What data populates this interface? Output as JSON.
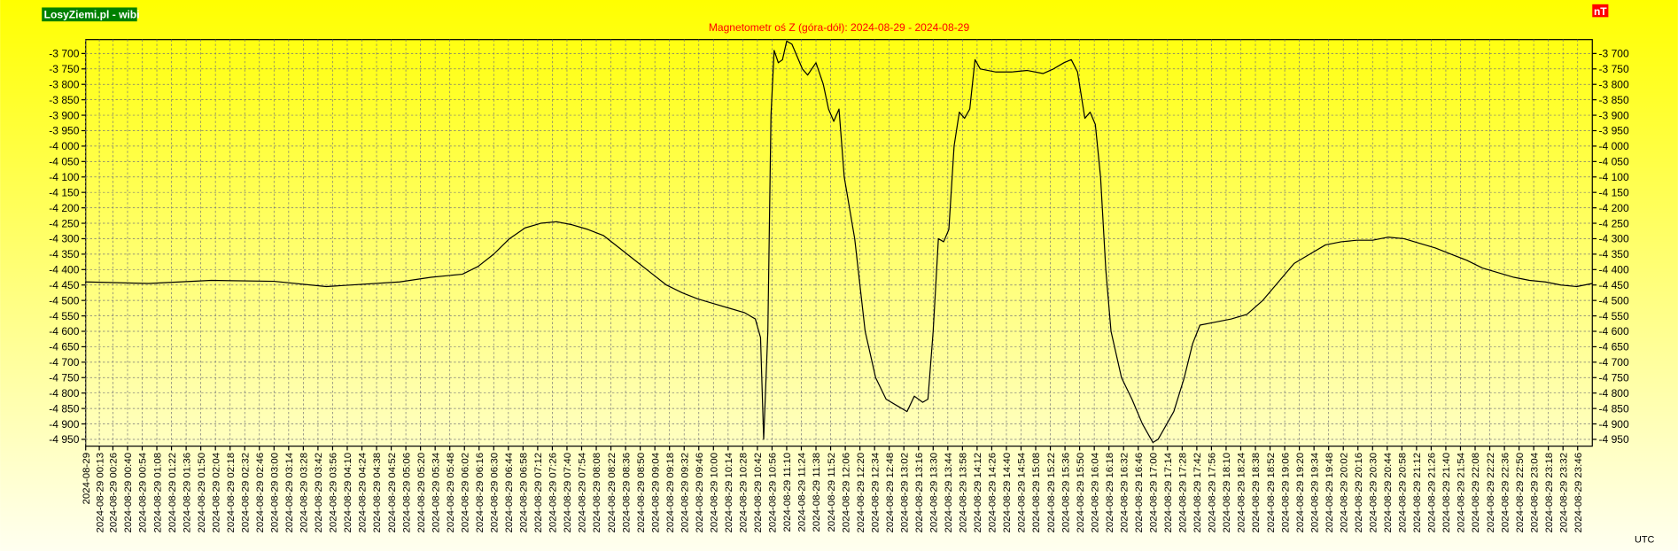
{
  "chart_data": {
    "type": "line",
    "title": "Magnetometr oś Z (góra-dół): 2024-08-29 - 2024-08-29",
    "site_label": "LosyZiemi.pl - wibi",
    "unit_label": "nT",
    "x_axis_label": "UTC",
    "grid": true,
    "xlim": [
      0,
      1440
    ],
    "ylim": [
      -4972,
      -3655
    ],
    "yticks": [
      {
        "value": -3700,
        "label": "-3 700"
      },
      {
        "value": -3750,
        "label": "-3 750"
      },
      {
        "value": -3800,
        "label": "-3 800"
      },
      {
        "value": -3850,
        "label": "-3 850"
      },
      {
        "value": -3900,
        "label": "-3 900"
      },
      {
        "value": -3950,
        "label": "-3 950"
      },
      {
        "value": -4000,
        "label": "-4 000"
      },
      {
        "value": -4050,
        "label": "-4 050"
      },
      {
        "value": -4100,
        "label": "-4 100"
      },
      {
        "value": -4150,
        "label": "-4 150"
      },
      {
        "value": -4200,
        "label": "-4 200"
      },
      {
        "value": -4250,
        "label": "-4 250"
      },
      {
        "value": -4300,
        "label": "-4 300"
      },
      {
        "value": -4350,
        "label": "-4 350"
      },
      {
        "value": -4400,
        "label": "-4 400"
      },
      {
        "value": -4450,
        "label": "-4 450"
      },
      {
        "value": -4500,
        "label": "-4 500"
      },
      {
        "value": -4550,
        "label": "-4 550"
      },
      {
        "value": -4600,
        "label": "-4 600"
      },
      {
        "value": -4650,
        "label": "-4 650"
      },
      {
        "value": -4700,
        "label": "-4 700"
      },
      {
        "value": -4750,
        "label": "-4 750"
      },
      {
        "value": -4800,
        "label": "-4 800"
      },
      {
        "value": -4850,
        "label": "-4 850"
      },
      {
        "value": -4900,
        "label": "-4 900"
      },
      {
        "value": -4950,
        "label": "-4 950"
      }
    ],
    "xticks": [
      {
        "value": 0,
        "label": "2024-08-29"
      },
      {
        "value": 13,
        "label": "2024-08-29 00:13"
      },
      {
        "value": 26,
        "label": "2024-08-29 00:26"
      },
      {
        "value": 40,
        "label": "2024-08-29 00:40"
      },
      {
        "value": 54,
        "label": "2024-08-29 00:54"
      },
      {
        "value": 68,
        "label": "2024-08-29 01:08"
      },
      {
        "value": 82,
        "label": "2024-08-29 01:22"
      },
      {
        "value": 96,
        "label": "2024-08-29 01:36"
      },
      {
        "value": 110,
        "label": "2024-08-29 01:50"
      },
      {
        "value": 124,
        "label": "2024-08-29 02:04"
      },
      {
        "value": 138,
        "label": "2024-08-29 02:18"
      },
      {
        "value": 152,
        "label": "2024-08-29 02:32"
      },
      {
        "value": 166,
        "label": "2024-08-29 02:46"
      },
      {
        "value": 180,
        "label": "2024-08-29 03:00"
      },
      {
        "value": 194,
        "label": "2024-08-29 03:14"
      },
      {
        "value": 208,
        "label": "2024-08-29 03:28"
      },
      {
        "value": 222,
        "label": "2024-08-29 03:42"
      },
      {
        "value": 236,
        "label": "2024-08-29 03:56"
      },
      {
        "value": 250,
        "label": "2024-08-29 04:10"
      },
      {
        "value": 264,
        "label": "2024-08-29 04:24"
      },
      {
        "value": 278,
        "label": "2024-08-29 04:38"
      },
      {
        "value": 292,
        "label": "2024-08-29 04:52"
      },
      {
        "value": 306,
        "label": "2024-08-29 05:06"
      },
      {
        "value": 320,
        "label": "2024-08-29 05:20"
      },
      {
        "value": 334,
        "label": "2024-08-29 05:34"
      },
      {
        "value": 348,
        "label": "2024-08-29 05:48"
      },
      {
        "value": 362,
        "label": "2024-08-29 06:02"
      },
      {
        "value": 376,
        "label": "2024-08-29 06:16"
      },
      {
        "value": 390,
        "label": "2024-08-29 06:30"
      },
      {
        "value": 404,
        "label": "2024-08-29 06:44"
      },
      {
        "value": 418,
        "label": "2024-08-29 06:58"
      },
      {
        "value": 432,
        "label": "2024-08-29 07:12"
      },
      {
        "value": 446,
        "label": "2024-08-29 07:26"
      },
      {
        "value": 460,
        "label": "2024-08-29 07:40"
      },
      {
        "value": 474,
        "label": "2024-08-29 07:54"
      },
      {
        "value": 488,
        "label": "2024-08-29 08:08"
      },
      {
        "value": 502,
        "label": "2024-08-29 08:22"
      },
      {
        "value": 516,
        "label": "2024-08-29 08:36"
      },
      {
        "value": 530,
        "label": "2024-08-29 08:50"
      },
      {
        "value": 544,
        "label": "2024-08-29 09:04"
      },
      {
        "value": 558,
        "label": "2024-08-29 09:18"
      },
      {
        "value": 572,
        "label": "2024-08-29 09:32"
      },
      {
        "value": 586,
        "label": "2024-08-29 09:46"
      },
      {
        "value": 600,
        "label": "2024-08-29 10:00"
      },
      {
        "value": 614,
        "label": "2024-08-29 10:14"
      },
      {
        "value": 628,
        "label": "2024-08-29 10:28"
      },
      {
        "value": 642,
        "label": "2024-08-29 10:42"
      },
      {
        "value": 656,
        "label": "2024-08-29 10:56"
      },
      {
        "value": 670,
        "label": "2024-08-29 11:10"
      },
      {
        "value": 684,
        "label": "2024-08-29 11:24"
      },
      {
        "value": 698,
        "label": "2024-08-29 11:38"
      },
      {
        "value": 712,
        "label": "2024-08-29 11:52"
      },
      {
        "value": 726,
        "label": "2024-08-29 12:06"
      },
      {
        "value": 740,
        "label": "2024-08-29 12:20"
      },
      {
        "value": 754,
        "label": "2024-08-29 12:34"
      },
      {
        "value": 768,
        "label": "2024-08-29 12:48"
      },
      {
        "value": 782,
        "label": "2024-08-29 13:02"
      },
      {
        "value": 796,
        "label": "2024-08-29 13:16"
      },
      {
        "value": 810,
        "label": "2024-08-29 13:30"
      },
      {
        "value": 824,
        "label": "2024-08-29 13:44"
      },
      {
        "value": 838,
        "label": "2024-08-29 13:58"
      },
      {
        "value": 852,
        "label": "2024-08-29 14:12"
      },
      {
        "value": 866,
        "label": "2024-08-29 14:26"
      },
      {
        "value": 880,
        "label": "2024-08-29 14:40"
      },
      {
        "value": 894,
        "label": "2024-08-29 14:54"
      },
      {
        "value": 908,
        "label": "2024-08-29 15:08"
      },
      {
        "value": 922,
        "label": "2024-08-29 15:22"
      },
      {
        "value": 936,
        "label": "2024-08-29 15:36"
      },
      {
        "value": 950,
        "label": "2024-08-29 15:50"
      },
      {
        "value": 964,
        "label": "2024-08-29 16:04"
      },
      {
        "value": 978,
        "label": "2024-08-29 16:18"
      },
      {
        "value": 992,
        "label": "2024-08-29 16:32"
      },
      {
        "value": 1006,
        "label": "2024-08-29 16:46"
      },
      {
        "value": 1020,
        "label": "2024-08-29 17:00"
      },
      {
        "value": 1034,
        "label": "2024-08-29 17:14"
      },
      {
        "value": 1048,
        "label": "2024-08-29 17:28"
      },
      {
        "value": 1062,
        "label": "2024-08-29 17:42"
      },
      {
        "value": 1076,
        "label": "2024-08-29 17:56"
      },
      {
        "value": 1090,
        "label": "2024-08-29 18:10"
      },
      {
        "value": 1104,
        "label": "2024-08-29 18:24"
      },
      {
        "value": 1118,
        "label": "2024-08-29 18:38"
      },
      {
        "value": 1132,
        "label": "2024-08-29 18:52"
      },
      {
        "value": 1146,
        "label": "2024-08-29 19:06"
      },
      {
        "value": 1160,
        "label": "2024-08-29 19:20"
      },
      {
        "value": 1174,
        "label": "2024-08-29 19:34"
      },
      {
        "value": 1188,
        "label": "2024-08-29 19:48"
      },
      {
        "value": 1202,
        "label": "2024-08-29 20:02"
      },
      {
        "value": 1216,
        "label": "2024-08-29 20:16"
      },
      {
        "value": 1230,
        "label": "2024-08-29 20:30"
      },
      {
        "value": 1244,
        "label": "2024-08-29 20:44"
      },
      {
        "value": 1258,
        "label": "2024-08-29 20:58"
      },
      {
        "value": 1272,
        "label": "2024-08-29 21:12"
      },
      {
        "value": 1286,
        "label": "2024-08-29 21:26"
      },
      {
        "value": 1300,
        "label": "2024-08-29 21:40"
      },
      {
        "value": 1314,
        "label": "2024-08-29 21:54"
      },
      {
        "value": 1328,
        "label": "2024-08-29 22:08"
      },
      {
        "value": 1342,
        "label": "2024-08-29 22:22"
      },
      {
        "value": 1356,
        "label": "2024-08-29 22:36"
      },
      {
        "value": 1370,
        "label": "2024-08-29 22:50"
      },
      {
        "value": 1384,
        "label": "2024-08-29 23:04"
      },
      {
        "value": 1398,
        "label": "2024-08-29 23:18"
      },
      {
        "value": 1412,
        "label": "2024-08-29 23:32"
      },
      {
        "value": 1426,
        "label": "2024-08-29 23:46"
      }
    ],
    "x": [
      0,
      60,
      120,
      180,
      230,
      300,
      330,
      360,
      375,
      390,
      405,
      420,
      435,
      450,
      465,
      480,
      495,
      510,
      525,
      540,
      555,
      570,
      585,
      600,
      615,
      630,
      640,
      645,
      648,
      652,
      655,
      658,
      662,
      666,
      670,
      675,
      685,
      690,
      698,
      705,
      710,
      715,
      720,
      725,
      735,
      745,
      755,
      765,
      780,
      785,
      792,
      800,
      805,
      810,
      815,
      820,
      825,
      830,
      835,
      840,
      845,
      850,
      855,
      870,
      885,
      900,
      915,
      925,
      935,
      942,
      948,
      955,
      960,
      965,
      970,
      975,
      980,
      990,
      1000,
      1010,
      1020,
      1025,
      1030,
      1040,
      1050,
      1058,
      1065,
      1080,
      1095,
      1110,
      1125,
      1140,
      1155,
      1170,
      1185,
      1200,
      1215,
      1230,
      1245,
      1260,
      1275,
      1290,
      1305,
      1320,
      1335,
      1350,
      1365,
      1380,
      1395,
      1410,
      1425,
      1440
    ],
    "series": [
      {
        "name": "Z",
        "color": "#000000",
        "values": [
          -4440,
          -4445,
          -4435,
          -4438,
          -4455,
          -4440,
          -4425,
          -4415,
          -4390,
          -4350,
          -4300,
          -4265,
          -4250,
          -4245,
          -4255,
          -4270,
          -4290,
          -4330,
          -4370,
          -4410,
          -4450,
          -4475,
          -4495,
          -4510,
          -4525,
          -4540,
          -4560,
          -4620,
          -4950,
          -4600,
          -3900,
          -3690,
          -3730,
          -3720,
          -3660,
          -3670,
          -3750,
          -3770,
          -3730,
          -3800,
          -3880,
          -3920,
          -3880,
          -4100,
          -4300,
          -4600,
          -4750,
          -4820,
          -4850,
          -4860,
          -4810,
          -4830,
          -4820,
          -4600,
          -4300,
          -4310,
          -4270,
          -4000,
          -3890,
          -3910,
          -3880,
          -3720,
          -3750,
          -3760,
          -3760,
          -3755,
          -3765,
          -3750,
          -3730,
          -3720,
          -3760,
          -3910,
          -3890,
          -3930,
          -4100,
          -4400,
          -4600,
          -4750,
          -4820,
          -4900,
          -4960,
          -4950,
          -4920,
          -4860,
          -4750,
          -4640,
          -4580,
          -4570,
          -4560,
          -4545,
          -4500,
          -4440,
          -4380,
          -4350,
          -4320,
          -4310,
          -4305,
          -4305,
          -4295,
          -4300,
          -4315,
          -4330,
          -4350,
          -4370,
          -4395,
          -4410,
          -4425,
          -4435,
          -4440,
          -4450,
          -4455,
          -4445
        ]
      }
    ]
  }
}
